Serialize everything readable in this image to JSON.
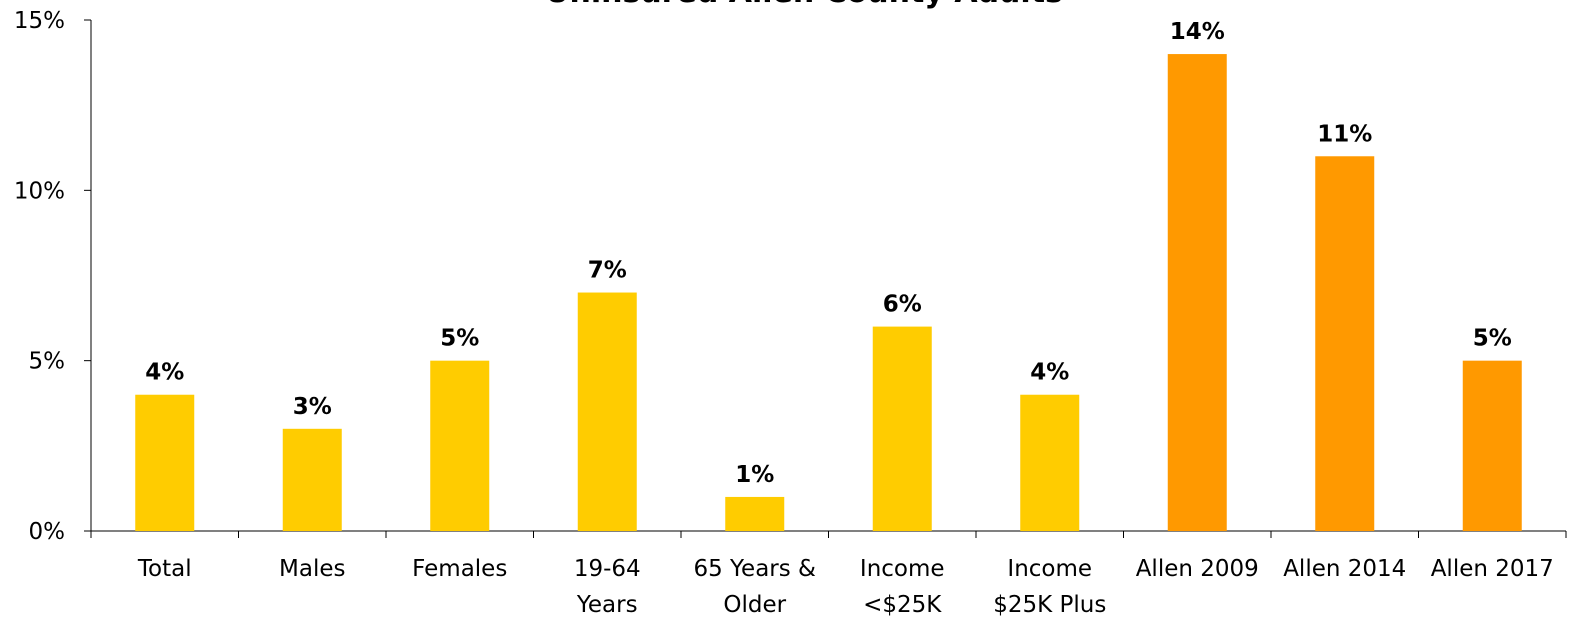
{
  "chart_data": {
    "type": "bar",
    "title": "Uninsured Allen County Adults",
    "xlabel": "",
    "ylabel": "",
    "ylim": [
      0,
      15
    ],
    "yticks": [
      "0%",
      "5%",
      "10%",
      "15%"
    ],
    "ytick_values": [
      0,
      5,
      10,
      15
    ],
    "grid": false,
    "legend": "none",
    "categories": [
      [
        "Total"
      ],
      [
        "Males"
      ],
      [
        "Females"
      ],
      [
        "19-64",
        "Years"
      ],
      [
        "65 Years &",
        "Older"
      ],
      [
        "Income",
        "<$25K"
      ],
      [
        "Income",
        "$25K Plus"
      ],
      [
        "Allen 2009"
      ],
      [
        "Allen 2014"
      ],
      [
        "Allen 2017"
      ]
    ],
    "values": [
      4,
      3,
      5,
      7,
      1,
      6,
      4,
      14,
      11,
      5
    ],
    "data_labels": [
      "4%",
      "3%",
      "5%",
      "7%",
      "1%",
      "6%",
      "4%",
      "14%",
      "11%",
      "5%"
    ],
    "colors": {
      "current": "#FFCC00",
      "trend": "#FF9900",
      "axis": "#000000"
    },
    "bar_color_groups": [
      "current",
      "current",
      "current",
      "current",
      "current",
      "current",
      "current",
      "trend",
      "trend",
      "trend"
    ]
  }
}
